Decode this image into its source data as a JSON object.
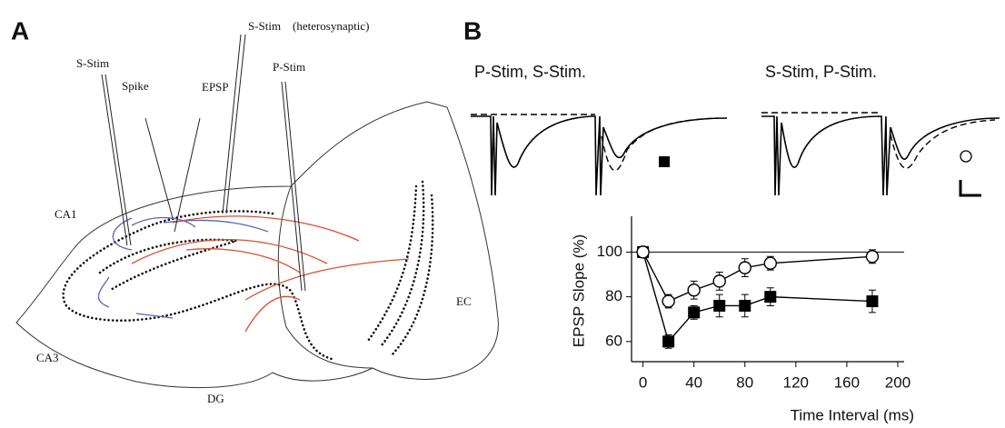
{
  "panels": {
    "a": "A",
    "b": "B"
  },
  "diagram": {
    "labels": [
      "S-Stim",
      "Spike",
      "EPSP",
      "S-Stim",
      "(heterosynaptic)",
      "P-Stim",
      "CA1",
      "CA3",
      "DG",
      "EC"
    ]
  },
  "traces": {
    "left_title": "P-Stim,  S-Stim.",
    "right_title": "S-Stim, P-Stim."
  },
  "chart_data": {
    "type": "line",
    "x": [
      0,
      20,
      40,
      60,
      80,
      100,
      180
    ],
    "series": [
      {
        "color": "#000000",
        "marker": "square",
        "values": [
          100,
          60,
          73,
          76,
          76,
          80,
          78
        ],
        "errors": [
          2,
          3,
          3,
          5,
          5,
          4,
          5
        ]
      },
      {
        "color": "#000000",
        "marker": "circle",
        "values": [
          100,
          78,
          83,
          87,
          93,
          95,
          98
        ],
        "errors": [
          2,
          3,
          4,
          4,
          4,
          3,
          3
        ]
      }
    ],
    "xlabel": "Time Interval (ms)",
    "ylabel": "EPSP Slope (%)",
    "xlim": [
      -9,
      205
    ],
    "ylim": [
      51,
      116
    ],
    "xticks": [
      0,
      40,
      80,
      120,
      160,
      200
    ],
    "yticks": [
      60,
      80,
      100
    ],
    "hline": 100
  }
}
